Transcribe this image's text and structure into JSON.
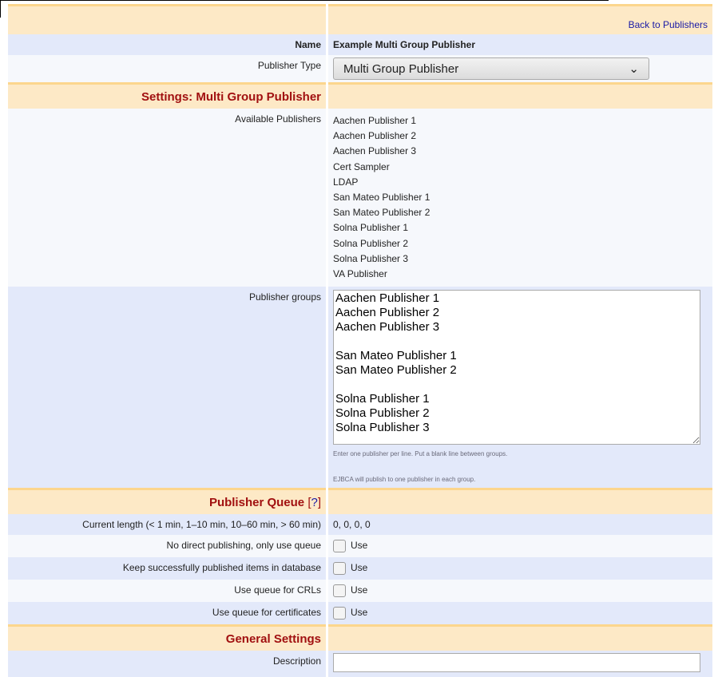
{
  "header": {
    "back_link": "Back to Publishers"
  },
  "name": {
    "label": "Name",
    "value": "Example Multi Group Publisher"
  },
  "publisher_type": {
    "label": "Publisher Type",
    "value": "Multi Group Publisher"
  },
  "settings": {
    "title": "Settings: Multi Group Publisher",
    "available_label": "Available Publishers",
    "available": [
      "Aachen Publisher 1",
      "Aachen Publisher 2",
      "Aachen Publisher 3",
      "Cert Sampler",
      "LDAP",
      "San Mateo Publisher 1",
      "San Mateo Publisher 2",
      "Solna Publisher 1",
      "Solna Publisher 2",
      "Solna Publisher 3",
      "VA Publisher"
    ],
    "groups_label": "Publisher groups",
    "groups_value": "Aachen Publisher 1\nAachen Publisher 2\nAachen Publisher 3\n\nSan Mateo Publisher 1\nSan Mateo Publisher 2\n\nSolna Publisher 1\nSolna Publisher 2\nSolna Publisher 3",
    "hint1": "Enter one publisher per line. Put a blank line between groups.",
    "hint2": "EJBCA will publish to one publisher in each group."
  },
  "queue": {
    "title": "Publisher Queue",
    "help": "?",
    "length_label": "Current length (< 1 min, 1–10 min, 10–60 min, > 60 min)",
    "length_value": "0, 0, 0, 0",
    "options": [
      {
        "label": "No direct publishing, only use queue",
        "check": "Use",
        "checked": false
      },
      {
        "label": "Keep successfully published items in database",
        "check": "Use",
        "checked": false
      },
      {
        "label": "Use queue for CRLs",
        "check": "Use",
        "checked": false
      },
      {
        "label": "Use queue for certificates",
        "check": "Use",
        "checked": false
      }
    ]
  },
  "general": {
    "title": "General Settings",
    "description_label": "Description",
    "description_value": ""
  }
}
